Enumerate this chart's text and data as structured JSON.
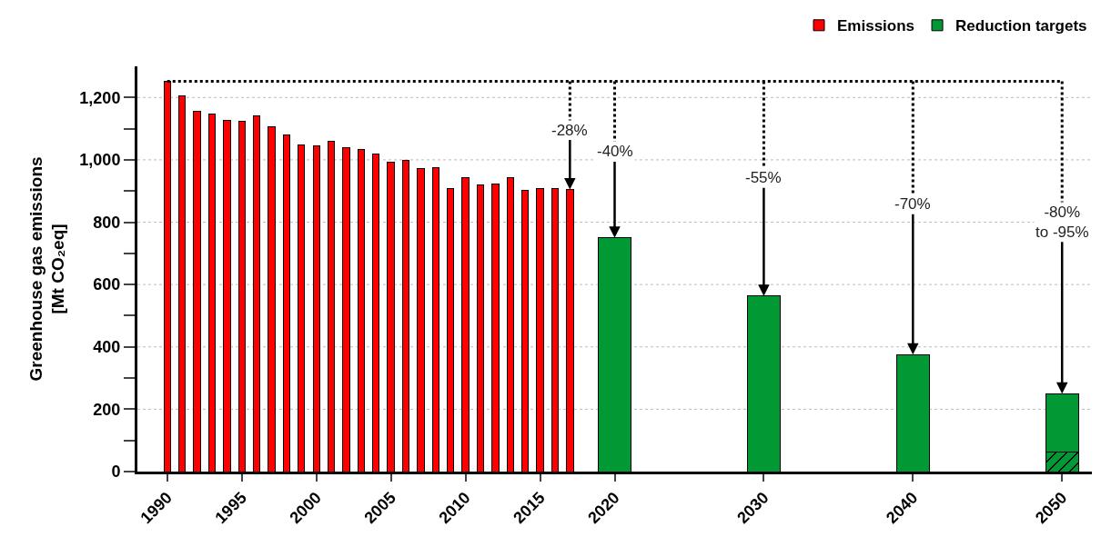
{
  "chart_data": {
    "type": "bar",
    "stacked": true,
    "ylabel": "Greenhouse gas emissions\n[Mt CO₂eq]",
    "xlim": [
      1988,
      2052
    ],
    "xticks": [
      1990,
      1995,
      2000,
      2005,
      2010,
      2015,
      2020,
      2030,
      2040,
      2050
    ],
    "ylim": [
      0,
      1300
    ],
    "yticks": [
      0,
      {
        "value": 100,
        "label": null
      },
      200,
      {
        "value": 300,
        "label": null
      },
      400,
      {
        "value": 500,
        "label": null
      },
      600,
      {
        "value": 700,
        "label": null
      },
      800,
      {
        "value": 900,
        "label": null
      },
      {
        "value": 1000,
        "label": "1,000"
      },
      {
        "value": 1100,
        "label": null
      },
      {
        "value": 1200,
        "label": "1,200"
      }
    ],
    "grid": "y",
    "legend": "top right",
    "series": [
      {
        "name": "Emissions",
        "color": "#ff0000",
        "values": [
          1252,
          1205,
          1155,
          1146,
          1126,
          1123,
          1141,
          1106,
          1081,
          1047,
          1045,
          1059,
          1038,
          1034,
          1018,
          993,
          999,
          973,
          975,
          908,
          942,
          920,
          924,
          942,
          902,
          907,
          909,
          905,
          null,
          null,
          null,
          null
        ]
      },
      {
        "color": "#009933",
        "values": [
          null,
          null,
          null,
          null,
          null,
          null,
          null,
          null,
          null,
          null,
          null,
          null,
          null,
          null,
          null,
          null,
          null,
          null,
          null,
          null,
          null,
          null,
          null,
          null,
          null,
          null,
          null,
          null,
          null,
          null,
          null,
          63
        ]
      },
      {
        "name": "Reduction targets",
        "color": "#009933",
        "values": [
          null,
          null,
          null,
          null,
          null,
          null,
          null,
          null,
          null,
          null,
          null,
          null,
          null,
          null,
          null,
          null,
          null,
          null,
          null,
          null,
          null,
          null,
          null,
          null,
          null,
          null,
          null,
          null,
          750,
          563,
          375,
          187
        ]
      }
    ],
    "x": [
      1990,
      1991,
      1992,
      1993,
      1994,
      1995,
      1996,
      1997,
      1998,
      1999,
      2000,
      2001,
      2002,
      2003,
      2004,
      2005,
      2006,
      2007,
      2008,
      2009,
      2010,
      2011,
      2012,
      2013,
      2014,
      2015,
      2016,
      2017,
      2020,
      2030,
      2040,
      2050
    ],
    "ref_lines": [
      {
        "axis": "y",
        "value": 1252,
        "color": "#000000",
        "line_style": "dotted"
      }
    ],
    "annotations": [
      {
        "text": "-28%",
        "x": 2017,
        "y": 905
      },
      {
        "text": "-40%",
        "x": 2020,
        "y": 750
      },
      {
        "text": "-55%",
        "x": 2030,
        "y": 563
      },
      {
        "text": "-70%",
        "x": 2040,
        "y": 375
      },
      {
        "text": "-80%\nto -95%",
        "x": 2050,
        "y": 250
      }
    ]
  }
}
